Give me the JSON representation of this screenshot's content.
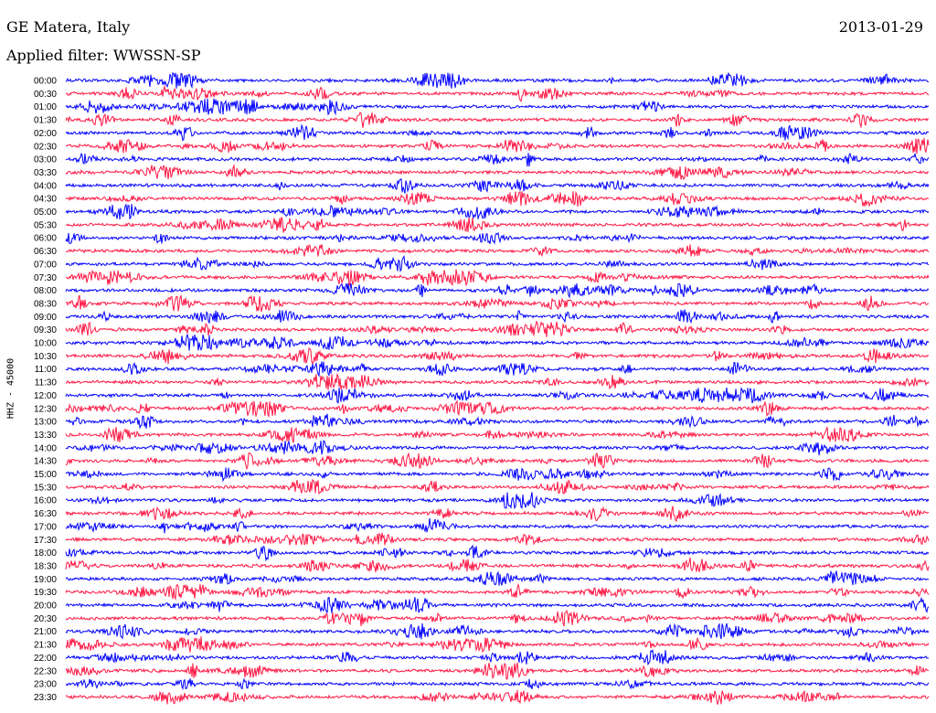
{
  "header": {
    "station": "GE Matera, Italy",
    "date": "2013-01-29",
    "filter": "Applied filter: WWSSN-SP"
  },
  "chart_data": {
    "type": "line",
    "ylabel": "HHZ - 45000",
    "colors": [
      "#0000ff",
      "#ff1744"
    ],
    "rows": [
      "00:00",
      "00:30",
      "01:00",
      "01:30",
      "02:00",
      "02:30",
      "03:00",
      "03:30",
      "04:00",
      "04:30",
      "05:00",
      "05:30",
      "06:00",
      "06:30",
      "07:00",
      "07:30",
      "08:00",
      "08:30",
      "09:00",
      "09:30",
      "10:00",
      "10:30",
      "11:00",
      "11:30",
      "12:00",
      "12:30",
      "13:00",
      "13:30",
      "14:00",
      "14:30",
      "15:00",
      "15:30",
      "16:00",
      "16:30",
      "17:00",
      "17:30",
      "18:00",
      "18:30",
      "19:00",
      "19:30",
      "20:00",
      "20:30",
      "21:00",
      "21:30",
      "22:00",
      "22:30",
      "23:00",
      "23:30"
    ],
    "grid": false
  }
}
